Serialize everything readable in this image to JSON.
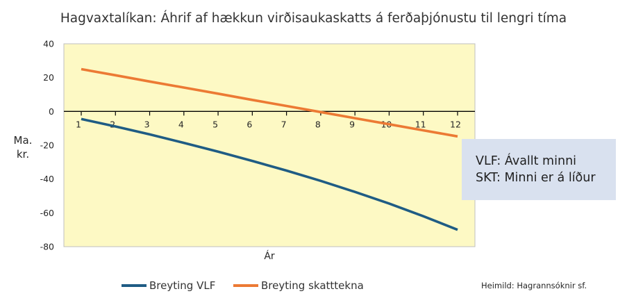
{
  "chart_data": {
    "type": "line",
    "title": "Hagvaxtalíkan: Áhrif af hækkun virðisaukaskatts á ferðaþjónustu til lengri tíma",
    "xlabel": "Ár",
    "ylabel_lines": [
      "Ma.",
      "kr."
    ],
    "x": [
      1,
      2,
      3,
      4,
      5,
      6,
      7,
      8,
      9,
      10,
      11,
      12
    ],
    "ylim": [
      -80,
      40
    ],
    "yticks": [
      40,
      20,
      0,
      -20,
      -40,
      -60,
      -80
    ],
    "grid": false,
    "background": "#fdf9c4",
    "series": [
      {
        "name": "Breyting VLF",
        "color": "#1f5c84",
        "values": [
          -4.5,
          -8.9,
          -13.6,
          -18.6,
          -23.8,
          -29.3,
          -35.0,
          -41.1,
          -47.6,
          -54.5,
          -62.0,
          -70.0
        ]
      },
      {
        "name": "Breyting skatttekna",
        "color": "#ec7a34",
        "values": [
          25,
          21.4,
          17.7,
          14.1,
          10.5,
          6.8,
          3.2,
          -0.4,
          -4.0,
          -7.6,
          -11.2,
          -14.8
        ]
      }
    ],
    "legend_position": "bottom",
    "annotation_lines": [
      "VLF: Ávallt minni",
      "SKT: Minni er á líður"
    ],
    "source": "Heimild: Hagrannsóknir sf."
  }
}
